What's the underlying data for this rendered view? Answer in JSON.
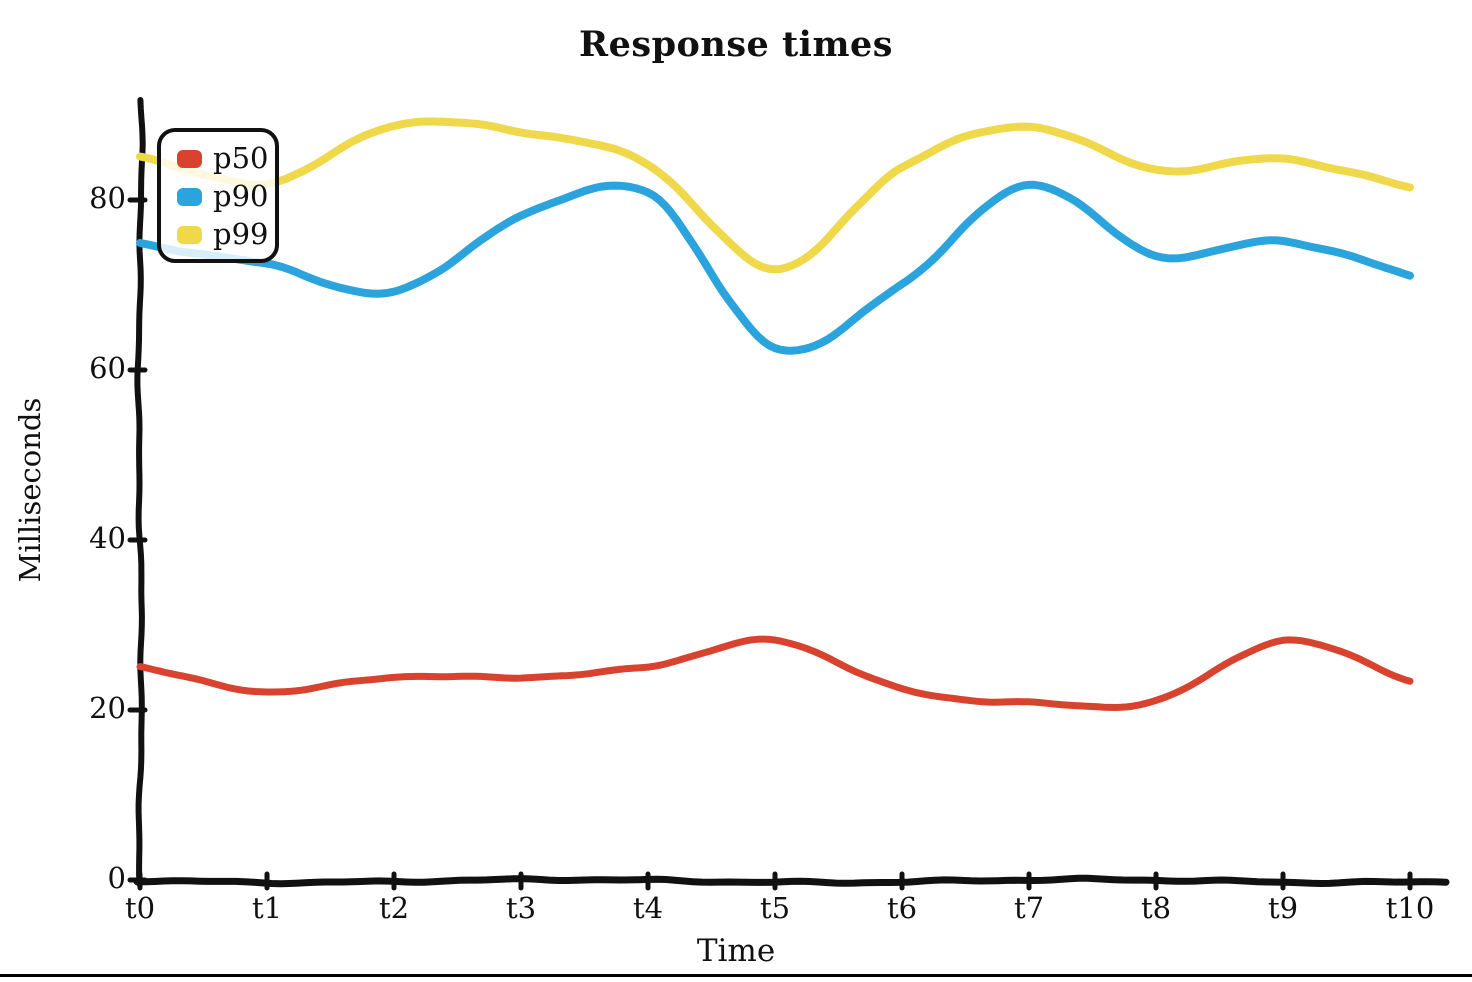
{
  "window": {
    "background": "#ffffff",
    "bottom_border_color": "#000000"
  },
  "chart_data": {
    "type": "line",
    "style": "hand-drawn",
    "title": "Response times",
    "xlabel": "Time",
    "ylabel": "Milliseconds",
    "categories": [
      "t0",
      "t1",
      "t2",
      "t3",
      "t4",
      "t5",
      "t6",
      "t7",
      "t8",
      "t9",
      "t10"
    ],
    "y_ticks": [
      0,
      20,
      40,
      60,
      80
    ],
    "ylim": [
      0,
      92
    ],
    "grid": false,
    "legend_position": "top-left",
    "axis_color": "#111111",
    "series": [
      {
        "name": "p50",
        "color": "#d8432f",
        "values": [
          25,
          22,
          24,
          24,
          25,
          28,
          22.5,
          21,
          21,
          28,
          23.5
        ]
      },
      {
        "name": "p90",
        "color": "#2ba3dc",
        "values": [
          75,
          72.5,
          69,
          78,
          81,
          62.5,
          70,
          82,
          73.5,
          75,
          71
        ]
      },
      {
        "name": "p99",
        "color": "#f0d84b",
        "values": [
          85,
          82,
          89,
          88,
          84,
          72,
          84,
          88.5,
          83.5,
          85,
          81.5
        ]
      }
    ]
  }
}
